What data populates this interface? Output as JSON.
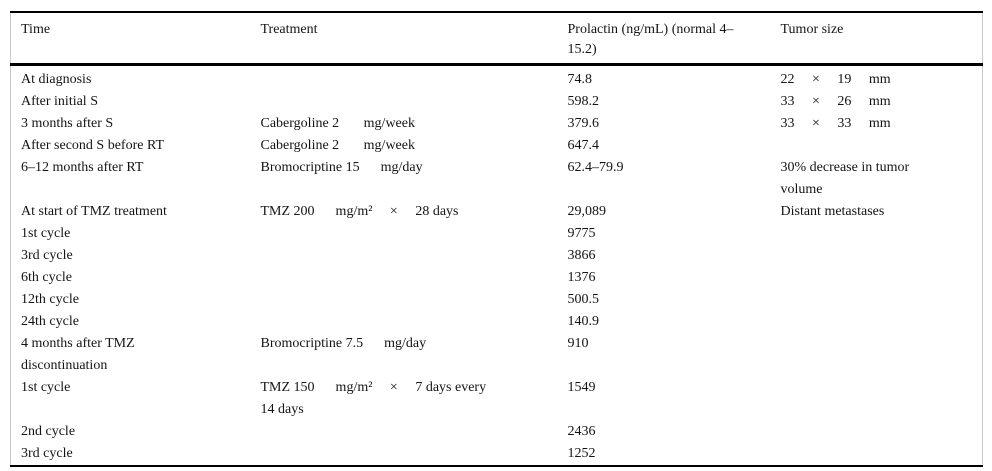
{
  "header": {
    "time": "Time",
    "treatment": "Treatment",
    "prolactin": "Prolactin (ng/mL) (normal 4–\n15.2)",
    "tumor": "Tumor size"
  },
  "rows": [
    {
      "time": "At diagnosis",
      "treatment": "",
      "prolactin": "74.8",
      "tumor": "22     ×     19     mm"
    },
    {
      "time": "After initial S",
      "treatment": "",
      "prolactin": "598.2",
      "tumor": "33     ×     26     mm"
    },
    {
      "time": "3 months after S",
      "treatment": "Cabergoline 2       mg/week",
      "prolactin": "379.6",
      "tumor": "33     ×     33     mm"
    },
    {
      "time": "After second S before RT",
      "treatment": "Cabergoline 2       mg/week",
      "prolactin": "647.4",
      "tumor": ""
    },
    {
      "time": "6–12 months after RT",
      "treatment": "Bromocriptine 15      mg/day",
      "prolactin": "62.4–79.9",
      "tumor": "30% decrease in tumor\nvolume"
    },
    {
      "time": "At start of TMZ treatment",
      "treatment": "TMZ 200      mg/m²     ×     28 days",
      "prolactin": "29,089",
      "tumor": "Distant metastases"
    },
    {
      "time": "1st cycle",
      "treatment": "",
      "prolactin": "9775",
      "tumor": ""
    },
    {
      "time": "3rd cycle",
      "treatment": "",
      "prolactin": "3866",
      "tumor": ""
    },
    {
      "time": "6th cycle",
      "treatment": "",
      "prolactin": "1376",
      "tumor": ""
    },
    {
      "time": "12th cycle",
      "treatment": "",
      "prolactin": "500.5",
      "tumor": ""
    },
    {
      "time": "24th cycle",
      "treatment": "",
      "prolactin": "140.9",
      "tumor": ""
    },
    {
      "time": "4 months after TMZ\ndiscontinuation",
      "treatment": "Bromocriptine 7.5      mg/day",
      "prolactin": "910",
      "tumor": ""
    },
    {
      "time": "1st cycle",
      "treatment": "TMZ 150      mg/m²     ×     7 days every\n14 days",
      "prolactin": "1549",
      "tumor": ""
    },
    {
      "time": "2nd cycle",
      "treatment": "",
      "prolactin": "2436",
      "tumor": ""
    },
    {
      "time": "3rd cycle",
      "treatment": "",
      "prolactin": "1252",
      "tumor": ""
    }
  ]
}
